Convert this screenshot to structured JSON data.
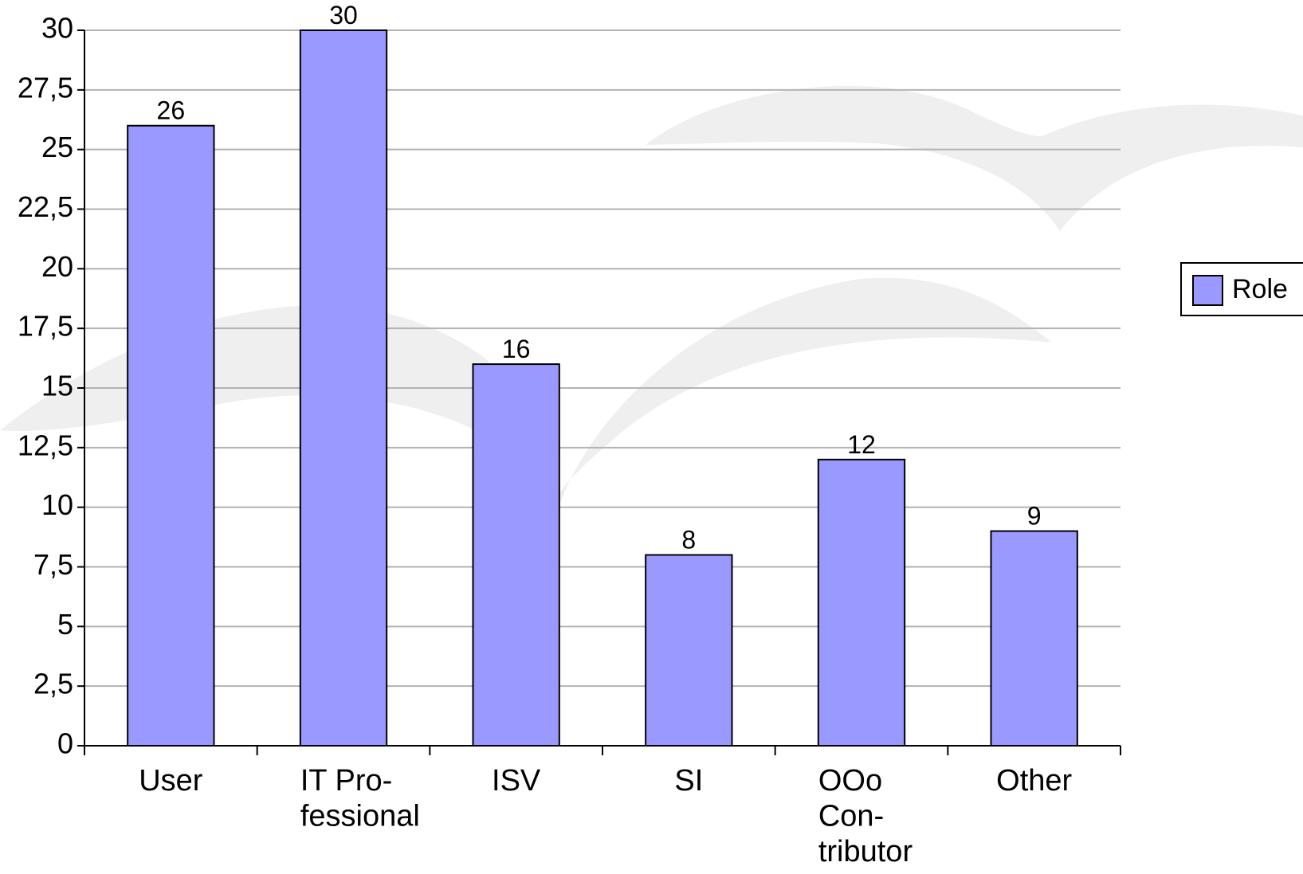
{
  "chart_data": {
    "type": "bar",
    "categories": [
      "User",
      "IT Pro-fessional",
      "ISV",
      "SI",
      "OOo Con-tributor",
      "Other"
    ],
    "series": [
      {
        "name": "Role",
        "color": "#9999ff",
        "values": [
          26,
          30,
          16,
          8,
          12,
          9
        ]
      }
    ],
    "ylim": [
      0,
      30
    ],
    "yticks": [
      0,
      {
        "value": 2.5,
        "label": "2,5"
      },
      5,
      {
        "value": 7.5,
        "label": "7,5"
      },
      10,
      {
        "value": 12.5,
        "label": "12,5"
      },
      15,
      {
        "value": 17.5,
        "label": "17,5"
      },
      20,
      {
        "value": 22.5,
        "label": "22,5"
      },
      25,
      {
        "value": 27.5,
        "label": "27,5"
      },
      30
    ],
    "grid": true,
    "legend": "right"
  }
}
